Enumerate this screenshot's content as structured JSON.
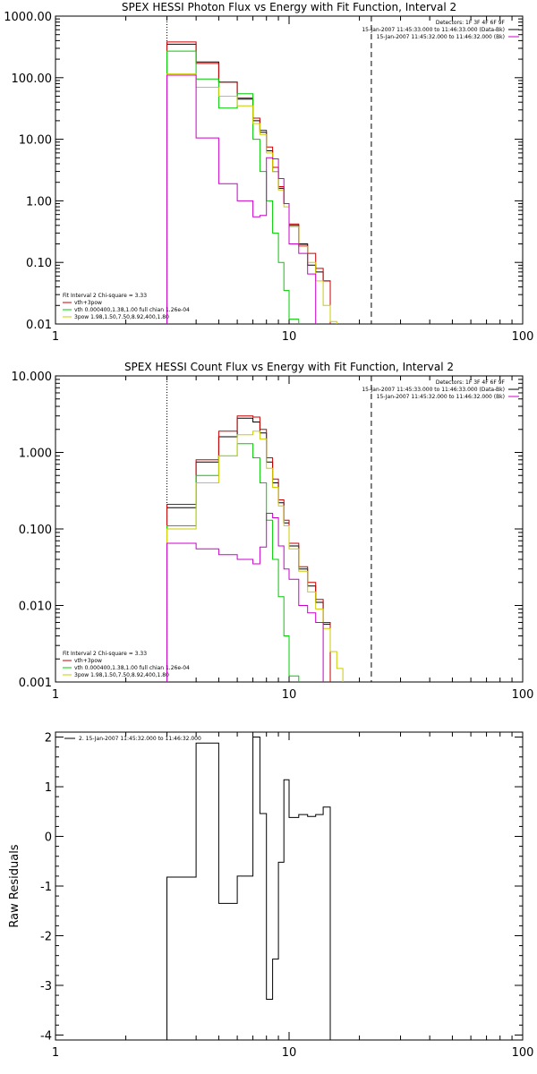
{
  "chart_data": [
    {
      "type": "line",
      "title": "SPEX HESSI Photon Flux vs Energy with Fit Function, Interval 2",
      "xscale": "log",
      "yscale": "log",
      "xlim": [
        1,
        100
      ],
      "ylim": [
        0.01,
        1000
      ],
      "xticks": [
        1,
        10,
        100
      ],
      "xticklabels": [
        "1",
        "10",
        "100"
      ],
      "yticks": [
        0.01,
        0.1,
        1,
        10,
        100,
        1000
      ],
      "yticklabels": [
        "0.01",
        "0.10",
        "1.00",
        "10.00",
        "100.00",
        "1000.00"
      ],
      "vlines": [
        {
          "x": 3,
          "style": "dotted",
          "color": "#000000"
        },
        {
          "x": 22.5,
          "style": "dashed",
          "color": "#000000"
        }
      ],
      "legend_top": [
        "Detectors: 1F 3F 4F 6F 9F",
        "15-Jan-2007 11:45:33.000 to 11:46:33.000 (Data-Bk)",
        "15-Jan-2007 11:45:32.000 to 11:46:32.000 (Bk)"
      ],
      "legend_top_colors": [
        "",
        "#000000",
        "#cc00cc"
      ],
      "legend_bottom": [
        "Fit Interval 2   Chi-square = 3.33",
        "vth+3pow",
        "vth 0.000400,1.38,1.00   full chian 1.26e-04",
        "3pow 1.98,1.50,7.50,8.92,400,1.80"
      ],
      "legend_bottom_colors": [
        "",
        "#cc0000",
        "#00cc00",
        "#cccc00"
      ],
      "edges": [
        3.0,
        3.5,
        4.0,
        4.5,
        5.0,
        5.5,
        6.0,
        6.5,
        7.0,
        7.5,
        8.0,
        8.5,
        9.0,
        9.5,
        10.0,
        11.0,
        12.0,
        13.0,
        14.0,
        15.0,
        16.0,
        17.0,
        18.0,
        20.0,
        22.5,
        25.0
      ],
      "series": [
        {
          "color": "#000000",
          "values": [
            350,
            350,
            180,
            180,
            85,
            85,
            45,
            45,
            20,
            13,
            6.5,
            3.0,
            1.6,
            0.9,
            0.4,
            0.2,
            0.09,
            0.07,
            0.05,
            null,
            null,
            null,
            null,
            null,
            null
          ]
        },
        {
          "color": "#cc0000",
          "values": [
            380,
            380,
            170,
            170,
            85,
            85,
            47,
            47,
            22,
            14,
            7.5,
            3.5,
            1.7,
            0.9,
            0.42,
            0.19,
            0.14,
            0.08,
            0.05,
            null,
            null,
            null,
            null,
            null,
            null
          ]
        },
        {
          "color": "#00cc00",
          "values": [
            270,
            270,
            95,
            95,
            32,
            32,
            55,
            55,
            10,
            3.0,
            1.0,
            0.3,
            0.1,
            0.035,
            0.012,
            null,
            null,
            null,
            null,
            null,
            null,
            null,
            null,
            null,
            null
          ]
        },
        {
          "color": "#cccc00",
          "values": [
            115,
            115,
            70,
            70,
            50,
            50,
            35,
            35,
            18,
            12,
            6.0,
            3.0,
            1.5,
            0.8,
            0.38,
            0.18,
            0.1,
            0.05,
            0.02,
            0.011,
            null,
            null,
            null,
            null,
            null
          ]
        },
        {
          "color": "#cc00cc",
          "values": [
            110,
            110,
            10.5,
            10.5,
            1.9,
            1.9,
            1.0,
            1.0,
            0.55,
            0.58,
            5.0,
            4.8,
            2.3,
            0.9,
            0.2,
            0.14,
            0.065,
            null,
            null,
            null,
            null,
            null,
            null,
            null,
            null
          ]
        }
      ]
    },
    {
      "type": "line",
      "title": "SPEX HESSI Count Flux vs Energy with Fit Function, Interval 2",
      "xscale": "log",
      "yscale": "log",
      "xlim": [
        1,
        100
      ],
      "ylim": [
        0.001,
        10
      ],
      "xticks": [
        1,
        10,
        100
      ],
      "xticklabels": [
        "1",
        "10",
        "100"
      ],
      "yticks": [
        0.001,
        0.01,
        0.1,
        1,
        10
      ],
      "yticklabels": [
        "0.001",
        "0.010",
        "0.100",
        "1.000",
        "10.000"
      ],
      "vlines": [
        {
          "x": 3,
          "style": "dotted",
          "color": "#000000"
        },
        {
          "x": 22.5,
          "style": "dashed",
          "color": "#000000"
        }
      ],
      "legend_top": [
        "Detectors: 1F 3F 4F 6F 9F",
        "15-Jan-2007 11:45:33.000 to 11:46:33.000 (Data-Bk)",
        "15-Jan-2007 11:45:32.000 to 11:46:32.000 (Bk)"
      ],
      "legend_top_colors": [
        "",
        "#000000",
        "#cc00cc"
      ],
      "legend_bottom": [
        "Fit Interval 2   Chi-square = 3.33",
        "vth+3pow",
        "vth 0.000400,1.38,1.00   full chian 1.26e-04",
        "3pow 1.98,1.50,7.50,8.92,400,1.80"
      ],
      "legend_bottom_colors": [
        "",
        "#cc0000",
        "#00cc00",
        "#cccc00"
      ],
      "edges": [
        3.0,
        3.5,
        4.0,
        4.5,
        5.0,
        5.5,
        6.0,
        6.5,
        7.0,
        7.5,
        8.0,
        8.5,
        9.0,
        9.5,
        10.0,
        11.0,
        12.0,
        13.0,
        14.0,
        15.0,
        16.0,
        17.0,
        18.0,
        20.0,
        22.5,
        25.0
      ],
      "series": [
        {
          "color": "#000000",
          "values": [
            0.19,
            0.19,
            0.75,
            0.75,
            1.6,
            1.6,
            2.8,
            2.8,
            2.5,
            1.8,
            0.75,
            0.4,
            0.22,
            0.12,
            0.06,
            0.03,
            0.018,
            0.011,
            0.0057,
            null,
            null,
            null,
            null,
            null,
            null
          ]
        },
        {
          "color": "#cc0000",
          "values": [
            0.21,
            0.21,
            0.8,
            0.8,
            1.9,
            1.9,
            3.0,
            3.0,
            2.9,
            2.0,
            0.85,
            0.45,
            0.24,
            0.13,
            0.065,
            0.032,
            0.02,
            0.012,
            0.006,
            null,
            null,
            null,
            null,
            null,
            null
          ]
        },
        {
          "color": "#00cc00",
          "values": [
            0.11,
            0.11,
            0.5,
            0.5,
            0.9,
            0.9,
            1.3,
            1.3,
            0.85,
            0.4,
            0.13,
            0.04,
            0.013,
            0.004,
            0.0012,
            null,
            null,
            null,
            null,
            null,
            null,
            null,
            null,
            null,
            null
          ]
        },
        {
          "color": "#cccc00",
          "values": [
            0.1,
            0.1,
            0.4,
            0.4,
            0.9,
            0.9,
            1.7,
            1.7,
            1.9,
            1.5,
            0.62,
            0.35,
            0.2,
            0.11,
            0.055,
            0.028,
            0.015,
            0.009,
            0.005,
            0.0025,
            0.0015,
            null,
            null,
            null,
            null
          ]
        },
        {
          "color": "#cc00cc",
          "values": [
            0.065,
            0.065,
            0.055,
            0.055,
            0.046,
            0.046,
            0.04,
            0.04,
            0.035,
            0.058,
            0.16,
            0.14,
            0.06,
            0.03,
            0.022,
            0.01,
            0.008,
            0.006,
            null,
            null,
            null,
            null,
            null,
            null,
            null
          ]
        }
      ]
    },
    {
      "type": "line",
      "title": "",
      "xscale": "log",
      "yscale": "linear",
      "xlim": [
        1,
        100
      ],
      "ylim": [
        -4.1,
        2.1
      ],
      "xticks": [
        1,
        10,
        100
      ],
      "xticklabels": [
        "1",
        "10",
        "100"
      ],
      "yticks": [
        -4,
        -3,
        -2,
        -1,
        0,
        1,
        2
      ],
      "yticklabels": [
        "-4",
        "-3",
        "-2",
        "-1",
        "0",
        "1",
        "2"
      ],
      "ylabel": "Raw Residuals",
      "legend_top": [
        "2. 15-Jan-2007 11:45:32.000 to 11:46:32.000"
      ],
      "legend_top_colors": [
        "#000000"
      ],
      "edges": [
        3.0,
        3.5,
        4.0,
        4.5,
        5.0,
        5.5,
        6.0,
        6.5,
        7.0,
        7.5,
        8.0,
        8.5,
        9.0,
        9.5,
        10.0,
        11.0,
        12.0,
        13.0,
        14.0,
        15.0,
        16.0,
        17.0,
        18.0,
        20.0,
        22.5
      ],
      "series": [
        {
          "color": "#000000",
          "values": [
            -0.82,
            -0.82,
            1.88,
            1.88,
            -1.35,
            -1.35,
            -0.8,
            -0.8,
            2.0,
            0.46,
            -3.28,
            -2.47,
            -0.52,
            1.14,
            0.38,
            0.44,
            0.4,
            0.44,
            0.59,
            null,
            null,
            null,
            null,
            null
          ]
        }
      ]
    }
  ]
}
